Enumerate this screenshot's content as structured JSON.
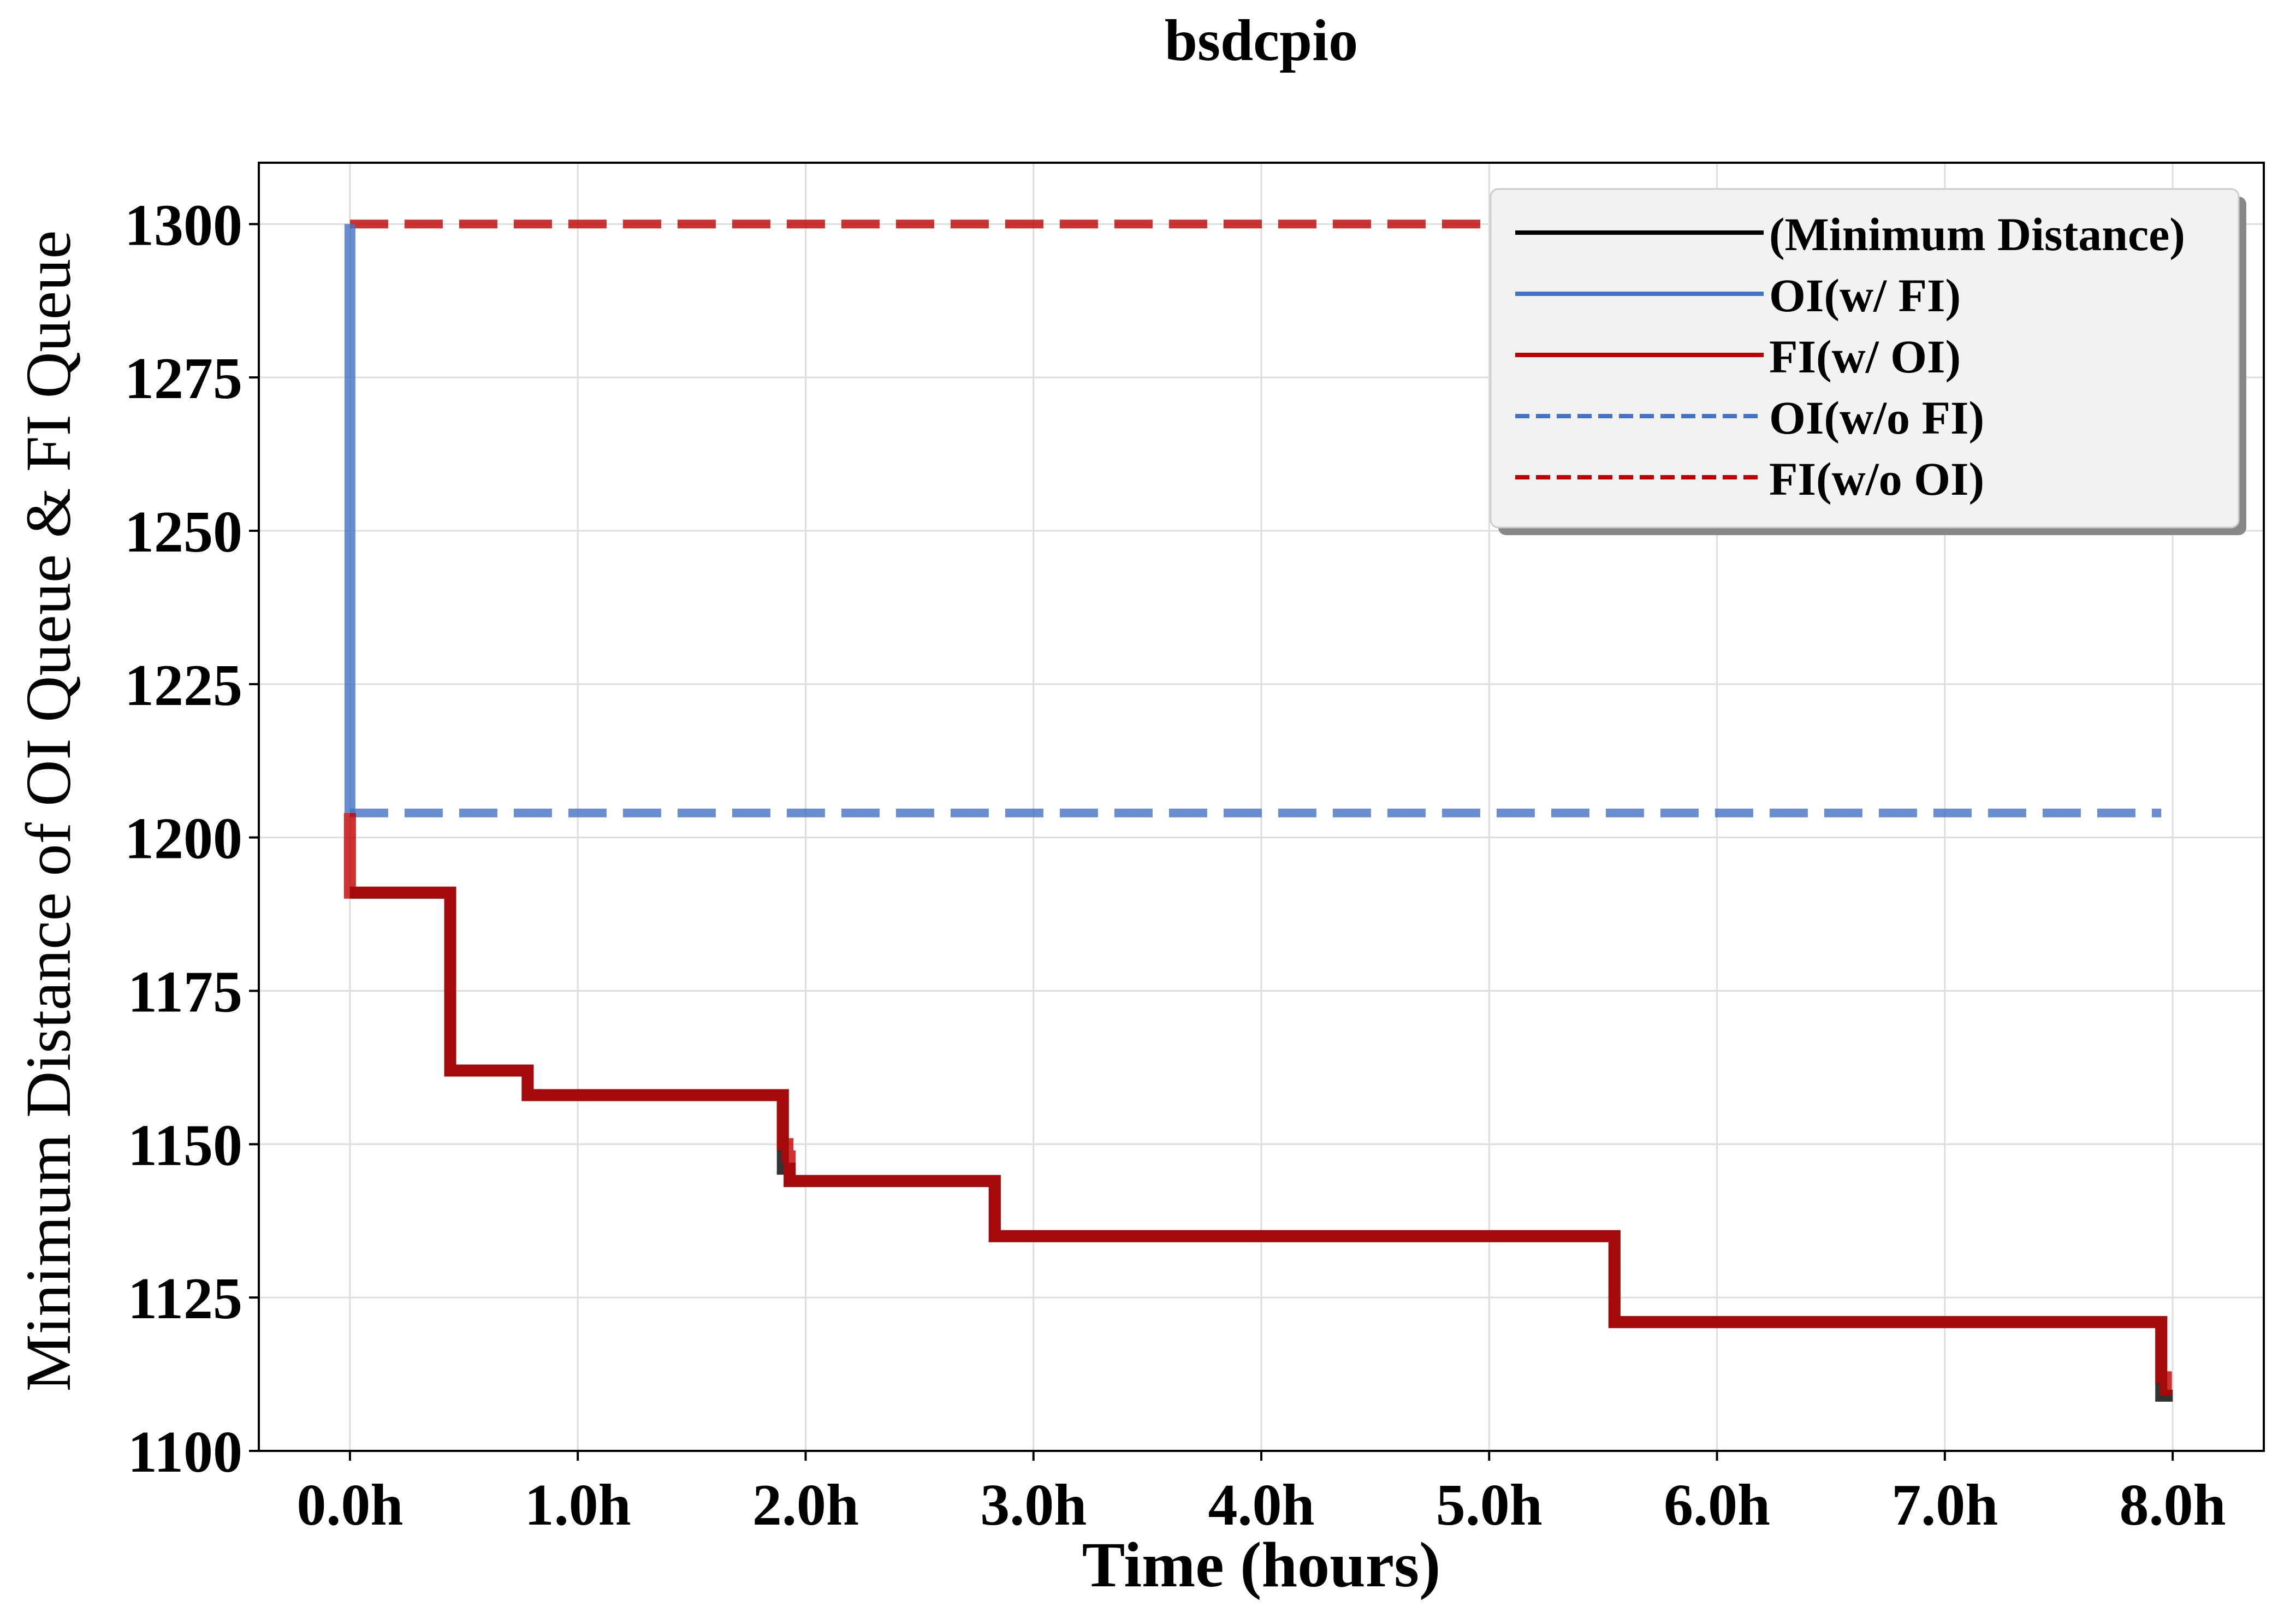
{
  "chart_data": {
    "type": "line",
    "title": "bsdcpio",
    "xlabel": "Time (hours)",
    "ylabel": "Minimum Distance of OI Queue & FI Queue",
    "xlim": [
      -0.4,
      8.4
    ],
    "ylim": [
      1100,
      1310
    ],
    "x_ticks": [
      0,
      1,
      2,
      3,
      4,
      5,
      6,
      7,
      8
    ],
    "x_tick_labels": [
      "0.0h",
      "1.0h",
      "2.0h",
      "3.0h",
      "4.0h",
      "5.0h",
      "6.0h",
      "7.0h",
      "8.0h"
    ],
    "y_ticks": [
      1100,
      1125,
      1150,
      1175,
      1200,
      1225,
      1250,
      1275,
      1300
    ],
    "y_tick_labels": [
      "1100",
      "1125",
      "1150",
      "1175",
      "1200",
      "1225",
      "1250",
      "1275",
      "1300"
    ],
    "grid": true,
    "legend_position": "top-right",
    "colors": {
      "min_distance": "#333333",
      "oi_with_fi": "#4472c4",
      "fi_with_oi": "#c00000",
      "oi_without_fi": "#4472c4",
      "fi_without_oi": "#c00000"
    },
    "series": [
      {
        "name": "(Minimum Distance)",
        "key": "min_distance",
        "style": "solid",
        "x": [
          0.0,
          0.44,
          0.44,
          0.78,
          0.78,
          1.9,
          1.9,
          1.93,
          1.93,
          2.83,
          2.83,
          5.55,
          5.55,
          7.95,
          7.95,
          8.0
        ],
        "y": [
          1191,
          1191,
          1162,
          1162,
          1158,
          1158,
          1146,
          1146,
          1144,
          1144,
          1135,
          1135,
          1121,
          1121,
          1109,
          1109
        ]
      },
      {
        "name": "OI(w/ FI)",
        "key": "oi_with_fi",
        "style": "solid",
        "x": [
          0.0,
          0.0
        ],
        "y": [
          1300,
          1204
        ]
      },
      {
        "name": "FI(w/ OI)",
        "key": "fi_with_oi",
        "style": "solid",
        "x": [
          0.0,
          0.0,
          0.0,
          0.0,
          0.44,
          0.44,
          0.78,
          0.78,
          1.9,
          1.9,
          1.92,
          1.92,
          1.93,
          1.93,
          2.83,
          2.83,
          5.55,
          5.55,
          7.95,
          7.95,
          7.97,
          7.97
        ],
        "y": [
          1204,
          1200,
          1200,
          1191,
          1191,
          1162,
          1162,
          1158,
          1158,
          1150,
          1150,
          1148,
          1148,
          1144,
          1144,
          1135,
          1135,
          1121,
          1121,
          1112,
          1112,
          1109
        ]
      },
      {
        "name": "OI(w/o FI)",
        "key": "oi_without_fi",
        "style": "dashed",
        "x": [
          0.0,
          7.95
        ],
        "y": [
          1204,
          1204
        ]
      },
      {
        "name": "FI(w/o OI)",
        "key": "fi_without_oi",
        "style": "dashed",
        "x": [
          0.0,
          7.95
        ],
        "y": [
          1300,
          1300
        ]
      }
    ]
  }
}
